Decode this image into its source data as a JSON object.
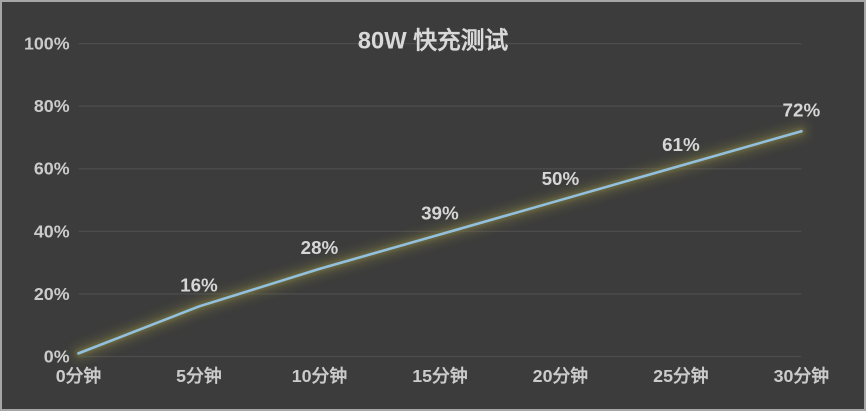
{
  "chart_data": {
    "type": "line",
    "title": "80W 快充测试",
    "categories": [
      "0分钟",
      "5分钟",
      "10分钟",
      "15分钟",
      "20分钟",
      "25分钟",
      "30分钟"
    ],
    "values": [
      1,
      16,
      28,
      39,
      50,
      61,
      72
    ],
    "data_labels": [
      "",
      "16%",
      "28%",
      "39%",
      "50%",
      "61%",
      "72%"
    ],
    "ytick_labels": [
      "0%",
      "20%",
      "40%",
      "60%",
      "80%",
      "100%"
    ],
    "ytick_values": [
      0,
      20,
      40,
      60,
      80,
      100
    ],
    "ylim": [
      0,
      100
    ],
    "xlabel": "",
    "ylabel": "",
    "grid": true,
    "legend": "none",
    "colors": {
      "background": "#3c3c3c",
      "frame_border": "#a6a6a6",
      "gridline": "#4d4d4d",
      "axis_text": "#cbcbcb",
      "data_label_text": "#d6d6d6",
      "title_text": "#d9d9d9",
      "line": "#93c0de",
      "line_glow": "#7b7842"
    }
  }
}
